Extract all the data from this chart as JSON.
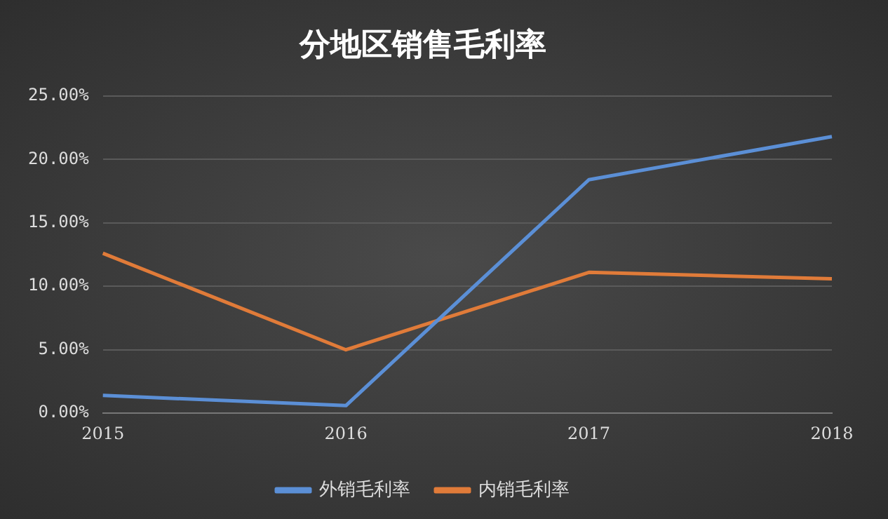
{
  "chart_data": {
    "type": "line",
    "title": "分地区销售毛利率",
    "categories": [
      "2015",
      "2016",
      "2017",
      "2018"
    ],
    "series": [
      {
        "name": "外销毛利率",
        "color": "#5b8fd6",
        "values": [
          1.4,
          0.6,
          18.4,
          21.8
        ]
      },
      {
        "name": "内销毛利率",
        "color": "#e07b39",
        "values": [
          12.6,
          5.0,
          11.1,
          10.6
        ]
      }
    ],
    "ylim": [
      0,
      25
    ],
    "yticks": [
      {
        "value": 0,
        "label": "0.00%"
      },
      {
        "value": 5,
        "label": "5.00%"
      },
      {
        "value": 10,
        "label": "10.00%"
      },
      {
        "value": 15,
        "label": "15.00%"
      },
      {
        "value": 20,
        "label": "20.00%"
      },
      {
        "value": 25,
        "label": "25.00%"
      }
    ],
    "grid": "y",
    "legend": "bottom",
    "marker": "none",
    "line_style": "solid"
  }
}
